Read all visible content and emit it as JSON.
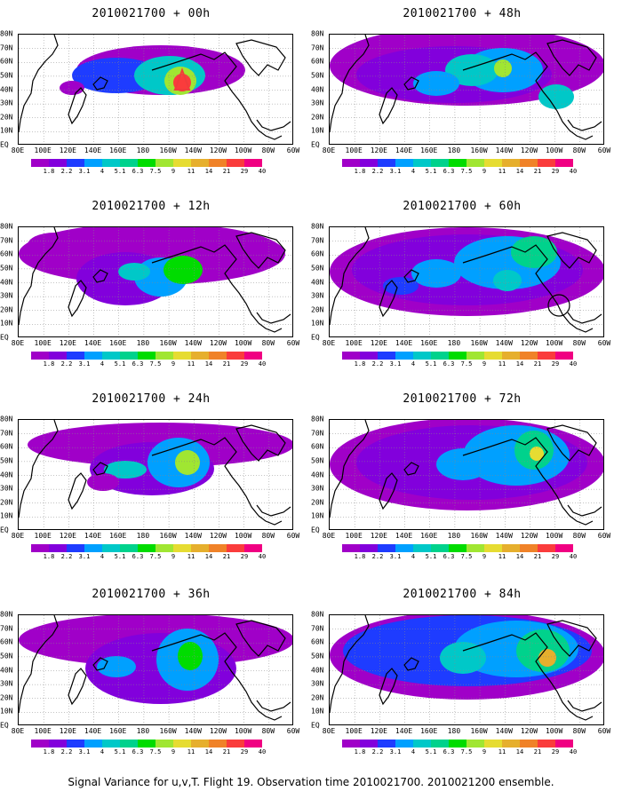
{
  "caption": "Signal Variance for u,v,T. Flight 19. Observation time 2010021700. 2010021200 ensemble.",
  "lat_labels": [
    "80N",
    "70N",
    "60N",
    "50N",
    "40N",
    "30N",
    "20N",
    "10N",
    "EQ"
  ],
  "lon_labels": [
    "80E",
    "100E",
    "120E",
    "140E",
    "160E",
    "180",
    "160W",
    "140W",
    "120W",
    "100W",
    "80W",
    "60W"
  ],
  "colorbar": {
    "labels": [
      "1.8",
      "2.2",
      "3.1",
      "4",
      "5.1",
      "6.3",
      "7.5",
      "9",
      "11",
      "14",
      "21",
      "29",
      "40"
    ],
    "colors": [
      "#a000c8",
      "#8200dc",
      "#1e3cff",
      "#00a0ff",
      "#00c8c8",
      "#00d28c",
      "#00dc00",
      "#a0e632",
      "#e6dc32",
      "#e6af2d",
      "#f08228",
      "#fa3c3c",
      "#f00082"
    ]
  },
  "panels": [
    {
      "title": "2010021700 + 00h",
      "lead": "00h"
    },
    {
      "title": "2010021700 + 48h",
      "lead": "48h"
    },
    {
      "title": "2010021700 + 12h",
      "lead": "12h"
    },
    {
      "title": "2010021700 + 60h",
      "lead": "60h"
    },
    {
      "title": "2010021700 + 24h",
      "lead": "24h"
    },
    {
      "title": "2010021700 + 72h",
      "lead": "72h"
    },
    {
      "title": "2010021700 + 36h",
      "lead": "36h"
    },
    {
      "title": "2010021700 + 84h",
      "lead": "84h"
    }
  ]
}
